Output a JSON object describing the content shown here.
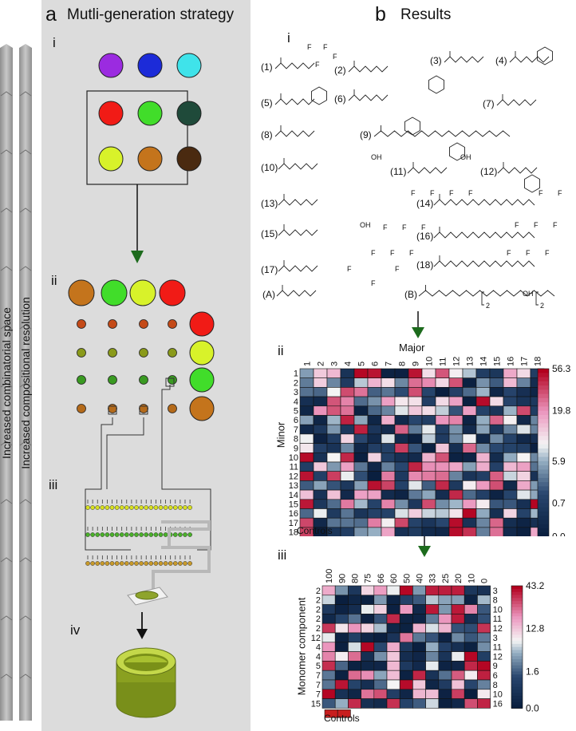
{
  "panel_a": {
    "letter": "a",
    "title": "Mutli-generation strategy",
    "stage_labels": [
      "i",
      "ii",
      "iii",
      "iv"
    ],
    "side_labels": [
      "Increased combinatorial space",
      "Increased compositional resolution"
    ],
    "gen1_colors": [
      "#9b2be0",
      "#1c2bd8",
      "#3fe3ea",
      "#f11b16",
      "#41dd2a",
      "#1f4a3a",
      "#d8f22a",
      "#c4741c",
      "#4a2a10"
    ],
    "gen2_top_colors": [
      "#c4741c",
      "#41dd2a",
      "#d8f22a",
      "#f11b16"
    ],
    "gen2_right_colors": [
      "#f11b16",
      "#d8f22a",
      "#41dd2a",
      "#c4741c"
    ],
    "gen2_small_row_colors": [
      "#c44a18",
      "#8a9a1a",
      "#3a9a22",
      "#b46a1a"
    ],
    "plate_row_colors": [
      "#d8e020",
      "#4ab02a",
      "#c89a2a"
    ]
  },
  "panel_b": {
    "letter": "b",
    "title": "Results",
    "stage_labels": [
      "i",
      "ii",
      "iii"
    ],
    "monomer_labels": [
      "(1)",
      "(2)",
      "(3)",
      "(4)",
      "(5)",
      "(6)",
      "(7)",
      "(8)",
      "(9)",
      "(10)",
      "(11)",
      "(12)",
      "(13)",
      "(14)",
      "(15)",
      "(16)",
      "(17)",
      "(18)",
      "(A)",
      "(B)"
    ],
    "fluorine_atom": "F",
    "hydroxyl_label": "OH",
    "peg_subscript": "2",
    "heatmap1": {
      "x_title": "Major",
      "y_title": "Minor",
      "columns": [
        "1",
        "2",
        "3",
        "4",
        "5",
        "6",
        "7",
        "8",
        "9",
        "10",
        "11",
        "12",
        "13",
        "14",
        "15",
        "16",
        "17",
        "18"
      ],
      "rows": [
        "1",
        "2",
        "3",
        "4",
        "5",
        "6",
        "7",
        "8",
        "9",
        "10",
        "11",
        "12",
        "13",
        "14",
        "15",
        "16",
        "17",
        "18"
      ],
      "controls_label": "Controls",
      "colorbar_ticks": [
        "56.3",
        "19.8",
        "5.9",
        "0.7",
        "0.0"
      ]
    },
    "heatmap2": {
      "y_title": "Monomer component",
      "columns": [
        "100",
        "90",
        "80",
        "75",
        "66",
        "60",
        "50",
        "40",
        "33",
        "25",
        "20",
        "10",
        "0"
      ],
      "left_rows": [
        "2",
        "2",
        "2",
        "2",
        "2",
        "12",
        "4",
        "4",
        "5",
        "7",
        "7",
        "7",
        "15"
      ],
      "right_rows": [
        "3",
        "8",
        "10",
        "11",
        "12",
        "3",
        "11",
        "12",
        "9",
        "6",
        "8",
        "10",
        "16"
      ],
      "controls_label": "Controls",
      "colorbar_ticks": [
        "43.2",
        "12.8",
        "1.6",
        "0.0"
      ]
    }
  },
  "colors": {
    "panel_bg": "#dcdcdc",
    "arrow_green": "#1d6b1d",
    "heat_low": "#0a1f3f",
    "heat_mid": "#f5f5f5",
    "heat_high": "#b2001e"
  }
}
